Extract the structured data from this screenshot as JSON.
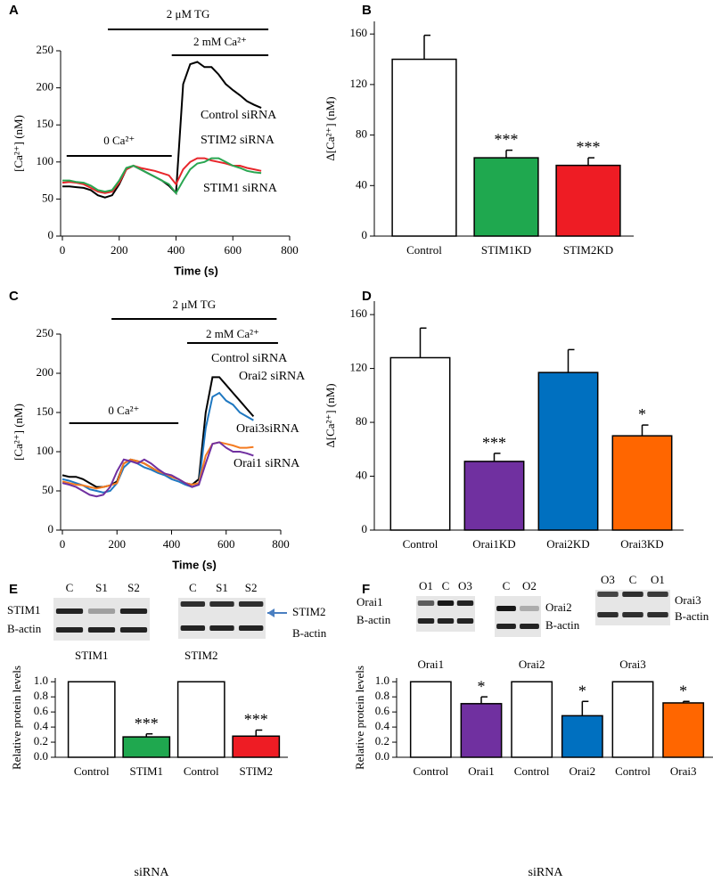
{
  "chart_data": [
    {
      "type": "line",
      "panel": "A",
      "x": [
        0,
        25,
        50,
        75,
        100,
        125,
        150,
        175,
        200,
        225,
        250,
        275,
        300,
        325,
        350,
        375,
        400,
        425,
        450,
        475,
        500,
        525,
        550,
        575,
        600,
        625,
        650,
        675,
        700
      ],
      "xlim": [
        0,
        800
      ],
      "xticks": [
        0,
        200,
        400,
        600,
        800
      ],
      "ylim": [
        0,
        250
      ],
      "yticks": [
        0,
        50,
        100,
        150,
        200,
        250
      ],
      "x_label": "Time (s)",
      "y_label": "[Ca²⁺] (nM)",
      "annotations": [
        {
          "text": "2 μM TG",
          "x": [
            160,
            725
          ]
        },
        {
          "text": "2 mM Ca²⁺",
          "x": [
            385,
            725
          ]
        },
        {
          "text": "0 Ca²⁺",
          "x": [
            15,
            385
          ]
        }
      ],
      "series": [
        {
          "name": "Control siRNA",
          "color": "#000000",
          "values": [
            67,
            67,
            66,
            65,
            62,
            55,
            52,
            55,
            70,
            90,
            95,
            90,
            85,
            80,
            75,
            68,
            58,
            205,
            232,
            235,
            228,
            228,
            218,
            205,
            197,
            190,
            182,
            177,
            173
          ]
        },
        {
          "name": "STIM2 siRNA",
          "color": "#e8262b",
          "values": [
            72,
            73,
            72,
            70,
            65,
            60,
            58,
            60,
            72,
            90,
            95,
            92,
            90,
            88,
            85,
            82,
            70,
            90,
            100,
            105,
            105,
            102,
            100,
            98,
            95,
            95,
            92,
            90,
            88
          ]
        },
        {
          "name": "STIM1 siRNA",
          "color": "#2aa651",
          "values": [
            75,
            75,
            73,
            72,
            68,
            62,
            60,
            62,
            75,
            92,
            95,
            90,
            85,
            80,
            75,
            70,
            58,
            75,
            90,
            98,
            100,
            105,
            105,
            100,
            95,
            92,
            88,
            86,
            85
          ]
        }
      ]
    },
    {
      "type": "bar",
      "panel": "B",
      "categories": [
        "Control",
        "STIM1KD",
        "STIM2KD"
      ],
      "values": [
        140,
        62,
        56
      ],
      "errors": [
        19,
        6,
        6
      ],
      "significance": [
        null,
        "***",
        "***"
      ],
      "colors": [
        "#ffffff",
        "#1fa84f",
        "#ee1c24"
      ],
      "ylim": [
        0,
        170
      ],
      "yticks": [
        0,
        40,
        80,
        120,
        160
      ],
      "y_label": "Δ[Ca²⁺] (nM)"
    },
    {
      "type": "line",
      "panel": "C",
      "x": [
        0,
        25,
        50,
        75,
        100,
        125,
        150,
        175,
        200,
        225,
        250,
        275,
        300,
        325,
        350,
        375,
        400,
        425,
        450,
        475,
        500,
        525,
        550,
        575,
        600,
        625,
        650,
        675,
        700
      ],
      "xlim": [
        0,
        800
      ],
      "xticks": [
        0,
        200,
        400,
        600,
        800
      ],
      "ylim": [
        0,
        250
      ],
      "yticks": [
        0,
        50,
        100,
        150,
        200,
        250
      ],
      "x_label": "Time (s)",
      "y_label": "[Ca²⁺] (nM)",
      "annotations": [
        {
          "text": "2 μM TG",
          "x": [
            180,
            785
          ]
        },
        {
          "text": "2 mM Ca²⁺",
          "x": [
            457,
            790
          ]
        },
        {
          "text": "0 Ca²⁺",
          "x": [
            25,
            425
          ]
        }
      ],
      "series": [
        {
          "name": "Control siRNA",
          "color": "#000000",
          "values": [
            70,
            68,
            68,
            65,
            60,
            55,
            55,
            57,
            62,
            85,
            90,
            88,
            85,
            80,
            75,
            72,
            68,
            65,
            60,
            58,
            65,
            150,
            195,
            195,
            185,
            175,
            165,
            155,
            145
          ]
        },
        {
          "name": "Orai2 siRNA",
          "color": "#1f78c1",
          "values": [
            65,
            63,
            60,
            57,
            52,
            50,
            48,
            50,
            60,
            80,
            88,
            85,
            80,
            77,
            73,
            70,
            65,
            62,
            58,
            55,
            58,
            130,
            170,
            175,
            165,
            160,
            150,
            145,
            140
          ]
        },
        {
          "name": "Orai3siRNA",
          "color": "#f47b20",
          "values": [
            62,
            60,
            58,
            57,
            55,
            53,
            55,
            57,
            60,
            85,
            90,
            88,
            85,
            80,
            75,
            72,
            68,
            65,
            60,
            58,
            60,
            95,
            110,
            112,
            110,
            108,
            105,
            105,
            106
          ]
        },
        {
          "name": "Orai1 siRNA",
          "color": "#7030a0",
          "values": [
            60,
            58,
            55,
            50,
            45,
            43,
            45,
            55,
            75,
            90,
            88,
            85,
            90,
            85,
            78,
            72,
            70,
            65,
            60,
            55,
            58,
            85,
            110,
            112,
            105,
            100,
            100,
            98,
            95
          ]
        }
      ]
    },
    {
      "type": "bar",
      "panel": "D",
      "categories": [
        "Control",
        "Orai1KD",
        "Orai2KD",
        "Orai3KD"
      ],
      "values": [
        128,
        51,
        117,
        70
      ],
      "errors": [
        22,
        6,
        17,
        8
      ],
      "significance": [
        null,
        "***",
        null,
        "*"
      ],
      "colors": [
        "#ffffff",
        "#7030a0",
        "#0070c0",
        "#ff6600"
      ],
      "ylim": [
        0,
        170
      ],
      "yticks": [
        0,
        40,
        80,
        120,
        160
      ],
      "y_label": "Δ[Ca²⁺] (nM)"
    },
    {
      "type": "bar",
      "panel": "E",
      "categories": [
        "Control",
        "STIM1",
        "Control",
        "STIM2"
      ],
      "group_labels": [
        "STIM1",
        "STIM2"
      ],
      "values": [
        1.0,
        0.27,
        1.0,
        0.28
      ],
      "errors": [
        0,
        0.04,
        0,
        0.08
      ],
      "significance": [
        null,
        "***",
        null,
        "***"
      ],
      "colors": [
        "#ffffff",
        "#1fa84f",
        "#ffffff",
        "#ee1c24"
      ],
      "ylim": [
        0,
        1.05
      ],
      "yticks": [
        {
          "value": 0,
          "label": "0.0"
        },
        0.2,
        0.4,
        0.6,
        0.8,
        {
          "value": 1,
          "label": "1.0"
        }
      ],
      "x_label": "siRNA",
      "y_label": "Relative protein levels"
    },
    {
      "type": "bar",
      "panel": "F",
      "categories": [
        "Control",
        "Orai1",
        "Control",
        "Orai2",
        "Control",
        "Orai3"
      ],
      "group_labels": [
        "Orai1",
        "Orai2",
        "Orai3"
      ],
      "values": [
        1.0,
        0.71,
        1.0,
        0.55,
        1.0,
        0.72
      ],
      "errors": [
        0,
        0.09,
        0,
        0.19,
        0,
        0.02
      ],
      "significance": [
        null,
        "*",
        null,
        "*",
        null,
        "*"
      ],
      "colors": [
        "#ffffff",
        "#7030a0",
        "#ffffff",
        "#0070c0",
        "#ffffff",
        "#ff6600"
      ],
      "ylim": [
        0,
        1.05
      ],
      "yticks": [
        {
          "value": 0,
          "label": "0.0"
        },
        0.2,
        0.4,
        0.6,
        0.8,
        {
          "value": 1,
          "label": "1.0"
        }
      ],
      "x_label": "siRNA",
      "y_label": "Relative protein levels"
    }
  ],
  "blots": [
    {
      "lanes": [
        "C",
        "S1",
        "S2"
      ],
      "rows": [
        "STIM1",
        "B-actin"
      ]
    },
    {
      "lanes": [
        "C",
        "S1",
        "S2"
      ],
      "rows": [
        "STIM2",
        "B-actin"
      ]
    },
    {
      "lanes": [
        "O1",
        "C",
        "O3"
      ],
      "rows": [
        "Orai1",
        "B-actin"
      ]
    },
    {
      "lanes": [
        "C",
        "O2"
      ],
      "rows": [
        "Orai2",
        "B-actin"
      ]
    },
    {
      "lanes": [
        "O3",
        "C",
        "O1"
      ],
      "rows": [
        "Orai3",
        "B-actin"
      ]
    }
  ]
}
